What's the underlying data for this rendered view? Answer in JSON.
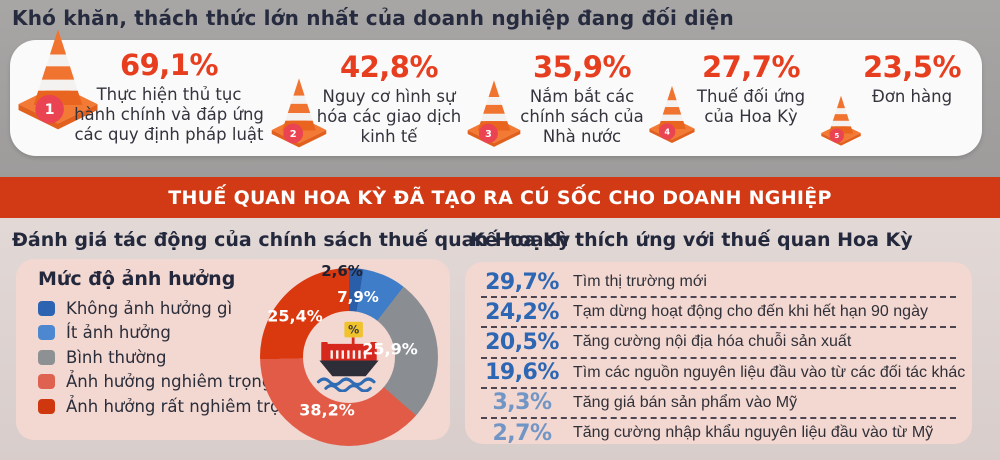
{
  "header": {
    "title": "Khó khăn, thách thức lớn nhất của doanh nghiệp đang đối diện"
  },
  "difficulties": {
    "accent_color": "#e63e1f",
    "items": [
      {
        "rank": "1",
        "pct": "69,1%",
        "desc": "Thực hiện thủ tục\nhành chính và đáp ứng\ncác quy định pháp luật"
      },
      {
        "rank": "2",
        "pct": "42,8%",
        "desc": "Nguy cơ hình sự\nhóa các giao dịch\nkinh tế"
      },
      {
        "rank": "3",
        "pct": "35,9%",
        "desc": "Nắm bắt các\nchính sách của\nNhà nước"
      },
      {
        "rank": "4",
        "pct": "27,7%",
        "desc": "Thuế đối ứng\ncủa Hoa Kỳ"
      },
      {
        "rank": "5",
        "pct": "23,5%",
        "desc": "Đơn hàng"
      }
    ]
  },
  "banner": {
    "title": "THUẾ QUAN HOA KỲ ĐÃ TẠO RA CÚ SỐC CHO DOANH NGHIỆP",
    "bg": "#d13a14"
  },
  "impact": {
    "heading": "Đánh giá tác động của chính sách thuế quan Hoa Kỳ",
    "legend_title": "Mức độ ảnh hưởng",
    "legend": [
      {
        "label": "Không ảnh hưởng gì",
        "color": "#2e63b1"
      },
      {
        "label": "Ít ảnh hưởng",
        "color": "#4d87cf"
      },
      {
        "label": "Bình thường",
        "color": "#8d9194"
      },
      {
        "label": "Ảnh hưởng nghiêm trọng",
        "color": "#df6150"
      },
      {
        "label": "Ảnh hưởng rất nghiêm trọng",
        "color": "#cf370e"
      }
    ]
  },
  "adaptation": {
    "heading": "Kế hoạch thích ứng với thuế quan Hoa Kỳ",
    "rows": [
      {
        "pct": "29,7%",
        "label": "Tìm thị trường mới",
        "pct_color": "#2d67b3"
      },
      {
        "pct": "24,2%",
        "label": "Tạm dừng hoạt động cho đến khi hết hạn 90 ngày",
        "pct_color": "#2d67b3"
      },
      {
        "pct": "20,5%",
        "label": "Tăng cường nội địa hóa chuỗi sản xuất",
        "pct_color": "#2d67b3"
      },
      {
        "pct": "19,6%",
        "label": "Tìm các nguồn nguyên liệu đầu vào từ các đối tác khác",
        "pct_color": "#2d67b3"
      },
      {
        "pct": "3,3%",
        "label": "Tăng giá bán sản phẩm vào Mỹ",
        "pct_color": "#7195c5"
      },
      {
        "pct": "2,7%",
        "label": "Tăng cường nhập khẩu nguyên liệu đầu vào từ Mỹ",
        "pct_color": "#7195c5"
      }
    ]
  },
  "chart_data": [
    {
      "type": "pie",
      "subtype": "donut",
      "title": "Đánh giá tác động của chính sách thuế quan Hoa Kỳ",
      "legend_title": "Mức độ ảnh hưởng",
      "legend_position": "left",
      "labels": [
        "Không ảnh hưởng gì",
        "Ít ảnh hưởng",
        "Bình thường",
        "Ảnh hưởng nghiêm trọng",
        "Ảnh hưởng rất nghiêm trọng"
      ],
      "values": [
        2.6,
        7.9,
        25.9,
        38.2,
        25.4
      ],
      "display_values": [
        "2,6%",
        "7,9%",
        "25,9%",
        "38,2%",
        "25,4%"
      ],
      "colors": [
        "#2b5ea9",
        "#3f7dc8",
        "#8a8e92",
        "#e25b47",
        "#da390f"
      ],
      "start_angle_deg": 0,
      "center_icon": "cargo-ship-with-percent-flag"
    },
    {
      "type": "bar",
      "title": "Kế hoạch thích ứng với thuế quan Hoa Kỳ",
      "categories": [
        "Tìm thị trường mới",
        "Tạm dừng hoạt động cho đến khi hết hạn 90 ngày",
        "Tăng cường nội địa hóa chuỗi sản xuất",
        "Tìm các nguồn nguyên liệu đầu vào từ các đối tác khác",
        "Tăng giá bán sản phẩm vào Mỹ",
        "Tăng cường nhập khẩu nguyên liệu đầu vào từ Mỹ"
      ],
      "values": [
        29.7,
        24.2,
        20.5,
        19.6,
        3.3,
        2.7
      ]
    },
    {
      "type": "bar",
      "title": "Khó khăn, thách thức lớn nhất của doanh nghiệp đang đối diện",
      "categories": [
        "Thực hiện thủ tục hành chính và đáp ứng các quy định pháp luật",
        "Nguy cơ hình sự hóa các giao dịch kinh tế",
        "Nắm bắt các chính sách của Nhà nước",
        "Thuế đối ứng của Hoa Kỳ",
        "Đơn hàng"
      ],
      "values": [
        69.1,
        42.8,
        35.9,
        27.7,
        23.5
      ]
    }
  ]
}
